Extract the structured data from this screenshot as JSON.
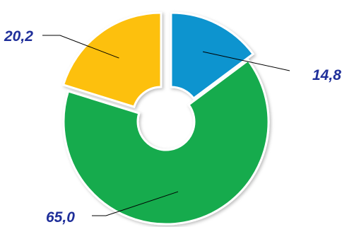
{
  "chart_data": {
    "type": "pie",
    "donut": true,
    "categories": [
      "",
      "",
      ""
    ],
    "values": [
      14.8,
      65.0,
      20.2
    ],
    "value_labels": [
      "14,8",
      "65,0",
      "20,2"
    ],
    "colors": [
      "#0e94cf",
      "#12ab4e",
      "#fdc00c"
    ],
    "legend": "none",
    "title": ""
  }
}
